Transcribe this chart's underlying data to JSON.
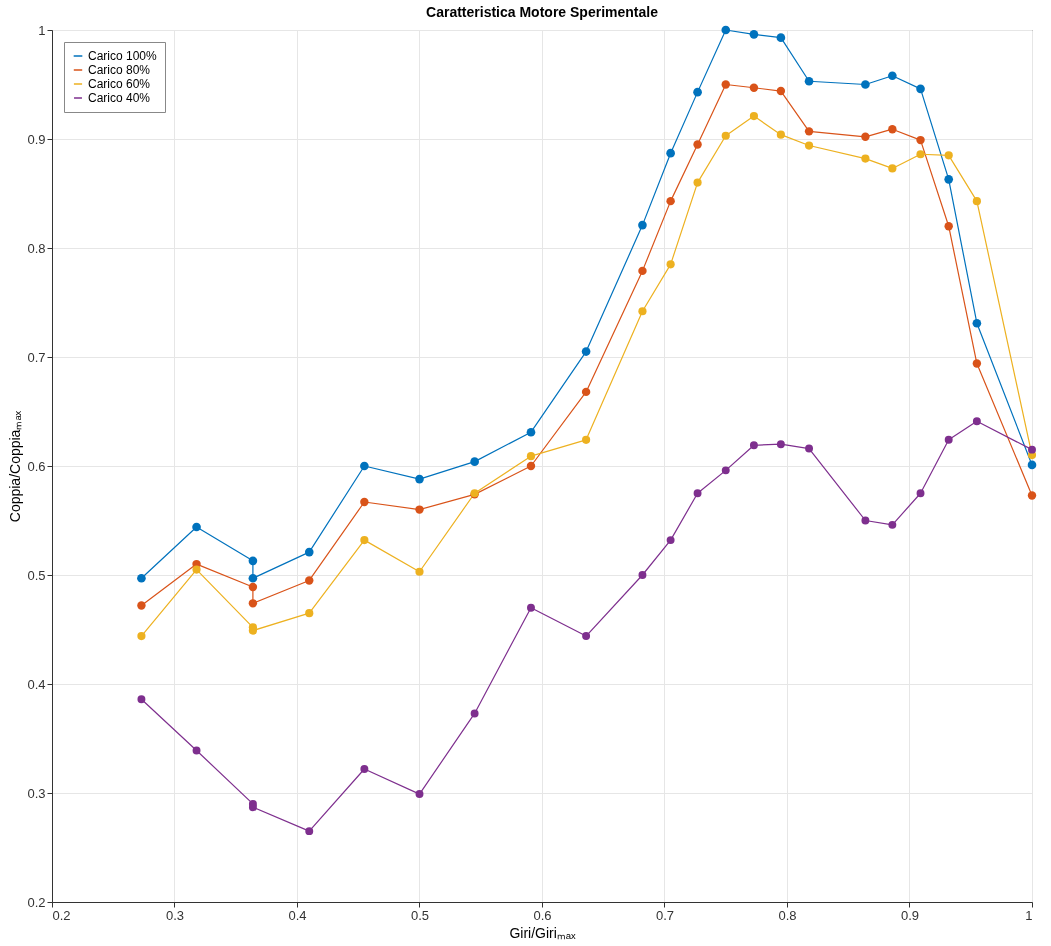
{
  "chart_data": {
    "type": "line",
    "title": "Caratteristica Motore Sperimentale",
    "xlabel": "Giri/Giriₘₐₓ",
    "ylabel": "Coppia/Coppiaₘₐₓ",
    "x": [
      0.273,
      0.318,
      0.364,
      0.364,
      0.41,
      0.455,
      0.5,
      0.545,
      0.591,
      0.636,
      0.682,
      0.705,
      0.727,
      0.75,
      0.773,
      0.795,
      0.818,
      0.864,
      0.886,
      0.909,
      0.932,
      0.955,
      1.0
    ],
    "series": [
      {
        "name": "Carico 100%",
        "color": "#0072bd",
        "values": [
          0.497,
          0.544,
          0.513,
          0.497,
          0.521,
          0.6,
          0.588,
          0.604,
          0.631,
          0.705,
          0.821,
          0.887,
          0.943,
          1.0,
          0.996,
          0.993,
          0.953,
          0.95,
          0.958,
          0.946,
          0.863,
          0.731,
          0.601
        ]
      },
      {
        "name": "Carico 80%",
        "color": "#d95319",
        "values": [
          0.472,
          0.51,
          0.489,
          0.474,
          0.495,
          0.567,
          0.56,
          0.574,
          0.6,
          0.668,
          0.779,
          0.843,
          0.895,
          0.95,
          0.947,
          0.944,
          0.907,
          0.902,
          0.909,
          0.899,
          0.82,
          0.694,
          0.573
        ]
      },
      {
        "name": "Carico 60%",
        "color": "#edb120",
        "values": [
          0.444,
          0.505,
          0.452,
          0.449,
          0.465,
          0.532,
          0.503,
          0.575,
          0.609,
          0.624,
          0.742,
          0.785,
          0.86,
          0.903,
          0.921,
          0.904,
          0.894,
          0.882,
          0.873,
          0.886,
          0.885,
          0.843,
          0.61
        ]
      },
      {
        "name": "Carico 40%",
        "color": "#7e2f8e",
        "values": [
          0.386,
          0.339,
          0.29,
          0.287,
          0.265,
          0.322,
          0.299,
          0.373,
          0.47,
          0.444,
          0.5,
          0.532,
          0.575,
          0.596,
          0.619,
          0.62,
          0.616,
          0.55,
          0.546,
          0.575,
          0.624,
          0.641,
          0.615
        ]
      }
    ],
    "xlim": [
      0.2,
      1
    ],
    "xticks": [
      0.2,
      0.3,
      0.4,
      0.5,
      0.6,
      0.7,
      0.8,
      0.9,
      1
    ],
    "ylim": [
      0.2,
      1
    ],
    "yticks": [
      0.2,
      0.3,
      0.4,
      0.5,
      0.6,
      0.7,
      0.8,
      0.9,
      1
    ],
    "grid": true,
    "legend": "top left",
    "marker": "circle",
    "line_style": "solid"
  }
}
